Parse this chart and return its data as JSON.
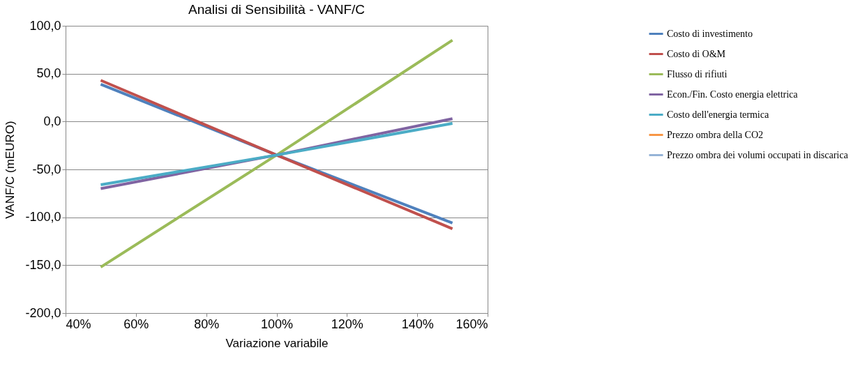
{
  "chart_data": {
    "type": "line",
    "title": "Analisi di Sensibilità - VANF/C",
    "xlabel": "Variazione variabile",
    "ylabel": "VANF/C (mEURO)",
    "x": [
      50,
      100,
      150
    ],
    "xlim": [
      40,
      160
    ],
    "xticks": [
      {
        "value": 40,
        "label": "40%"
      },
      {
        "value": 60,
        "label": "60%"
      },
      {
        "value": 80,
        "label": "80%"
      },
      {
        "value": 100,
        "label": "100%"
      },
      {
        "value": 120,
        "label": "120%"
      },
      {
        "value": 140,
        "label": "140%"
      },
      {
        "value": 160,
        "label": "160%"
      }
    ],
    "ylim": [
      -200,
      100
    ],
    "yticks": [
      {
        "value": -200,
        "label": "-200,0"
      },
      {
        "value": -150,
        "label": "-150,0"
      },
      {
        "value": -100,
        "label": "-100,0"
      },
      {
        "value": -50,
        "label": "-50,0"
      },
      {
        "value": 0,
        "label": "0,0"
      },
      {
        "value": 50,
        "label": "50,0"
      },
      {
        "value": 100,
        "label": "100,0"
      }
    ],
    "grid": "y",
    "legend": "right",
    "marker": "none",
    "line_style": "solid",
    "series": [
      {
        "name": "Costo di investimento",
        "color": "#4f81bd",
        "values": [
          39,
          -35,
          -106
        ]
      },
      {
        "name": "Costo di O&M",
        "color": "#c0504d",
        "values": [
          43,
          -35,
          -112
        ]
      },
      {
        "name": "Flusso di rifiuti",
        "color": "#9bbb59",
        "values": [
          -152,
          -35,
          85
        ]
      },
      {
        "name": "Econ./Fin. Costo energia elettrica",
        "color": "#8064a2",
        "values": [
          -70,
          -35,
          3
        ]
      },
      {
        "name": "Costo dell'energia termica",
        "color": "#4bacc6",
        "values": [
          -66,
          -35,
          -2
        ]
      },
      {
        "name": "Prezzo ombra della CO2",
        "color": "#f79646",
        "values": [
          null,
          null,
          null
        ]
      },
      {
        "name": "Prezzo ombra dei volumi occupati in discarica",
        "color": "#95b3d7",
        "values": [
          null,
          null,
          null
        ]
      }
    ]
  }
}
